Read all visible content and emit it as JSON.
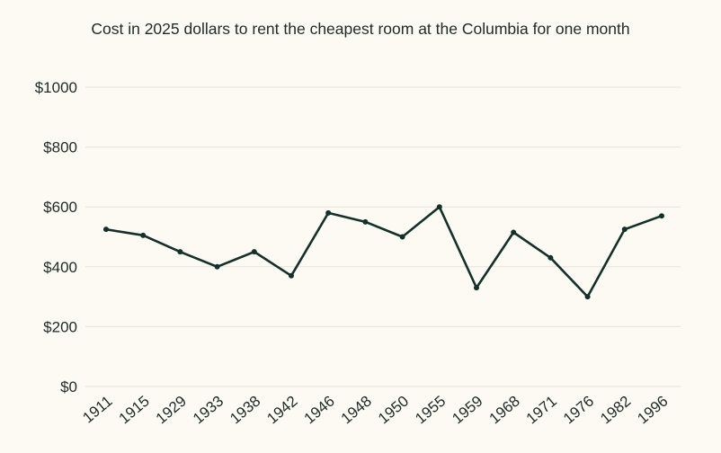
{
  "chart_data": {
    "type": "line",
    "title": "Cost in 2025 dollars to rent the cheapest room at the Columbia for one month",
    "xlabel": "",
    "ylabel": "",
    "categories": [
      "1911",
      "1915",
      "1929",
      "1933",
      "1938",
      "1942",
      "1946",
      "1948",
      "1950",
      "1955",
      "1959",
      "1968",
      "1971",
      "1976",
      "1982",
      "1996"
    ],
    "values": [
      525,
      505,
      450,
      400,
      450,
      370,
      580,
      550,
      500,
      600,
      330,
      515,
      430,
      300,
      525,
      570
    ],
    "ylim": [
      0,
      1000
    ],
    "yticks": [
      0,
      200,
      400,
      600,
      800,
      1000
    ],
    "ytick_labels": [
      "$0",
      "$200",
      "$400",
      "$600",
      "$800",
      "$1000"
    ],
    "grid": "horizontal",
    "colors": {
      "line": "#14302b",
      "grid": "#e4e1da",
      "background": "#fdfaf3"
    }
  }
}
